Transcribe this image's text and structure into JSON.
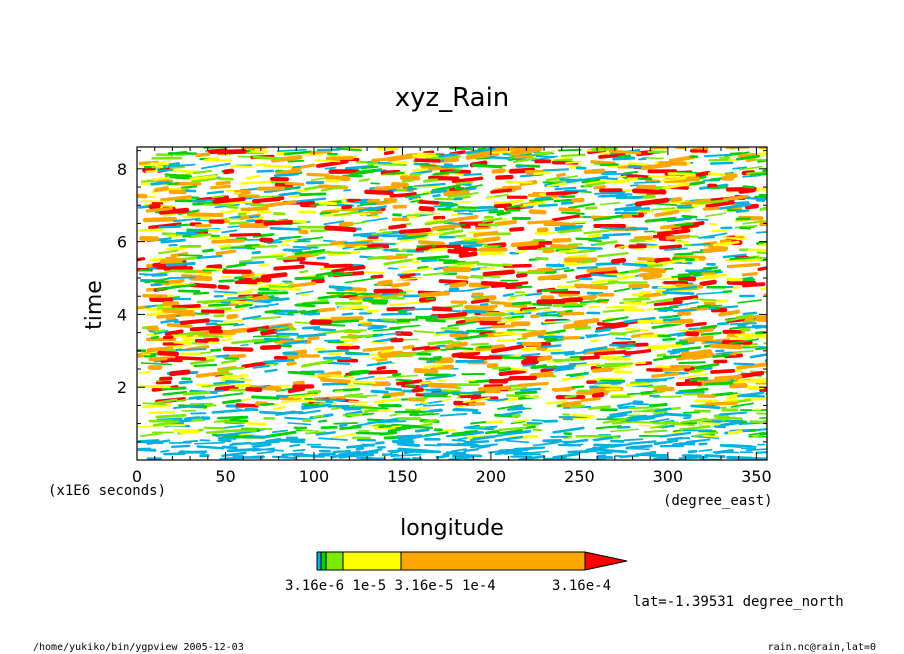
{
  "chart_data": {
    "type": "heatmap",
    "title": "xyz_Rain",
    "xlabel": "longitude",
    "ylabel": "time",
    "x_unit": "(degree_east)",
    "y_unit": "(x1E6 seconds)",
    "xlim": [
      0,
      356
    ],
    "ylim": [
      0,
      8.6
    ],
    "x_ticks": [
      "0",
      "50",
      "100",
      "150",
      "200",
      "250",
      "300",
      "350"
    ],
    "y_ticks": [
      "2",
      "4",
      "6",
      "8"
    ],
    "colorbar": {
      "levels": [
        "3.16e-6",
        "1e-5",
        "3.16e-5",
        "1e-4",
        "3.16e-4"
      ],
      "label_text": "3.16e-6 1e-5 3.16e-5 1e-4",
      "last_label": "3.16e-4",
      "colors": [
        "#00b0e0",
        "#00d000",
        "#7de800",
        "#ffff00",
        "#ffa500",
        "#ff0000"
      ]
    },
    "annotation": "lat=-1.39531 degree_north"
  },
  "footer": {
    "left": "/home/yukiko/bin/ygpview  2005-12-03",
    "right": "rain.nc@rain,lat=0"
  }
}
